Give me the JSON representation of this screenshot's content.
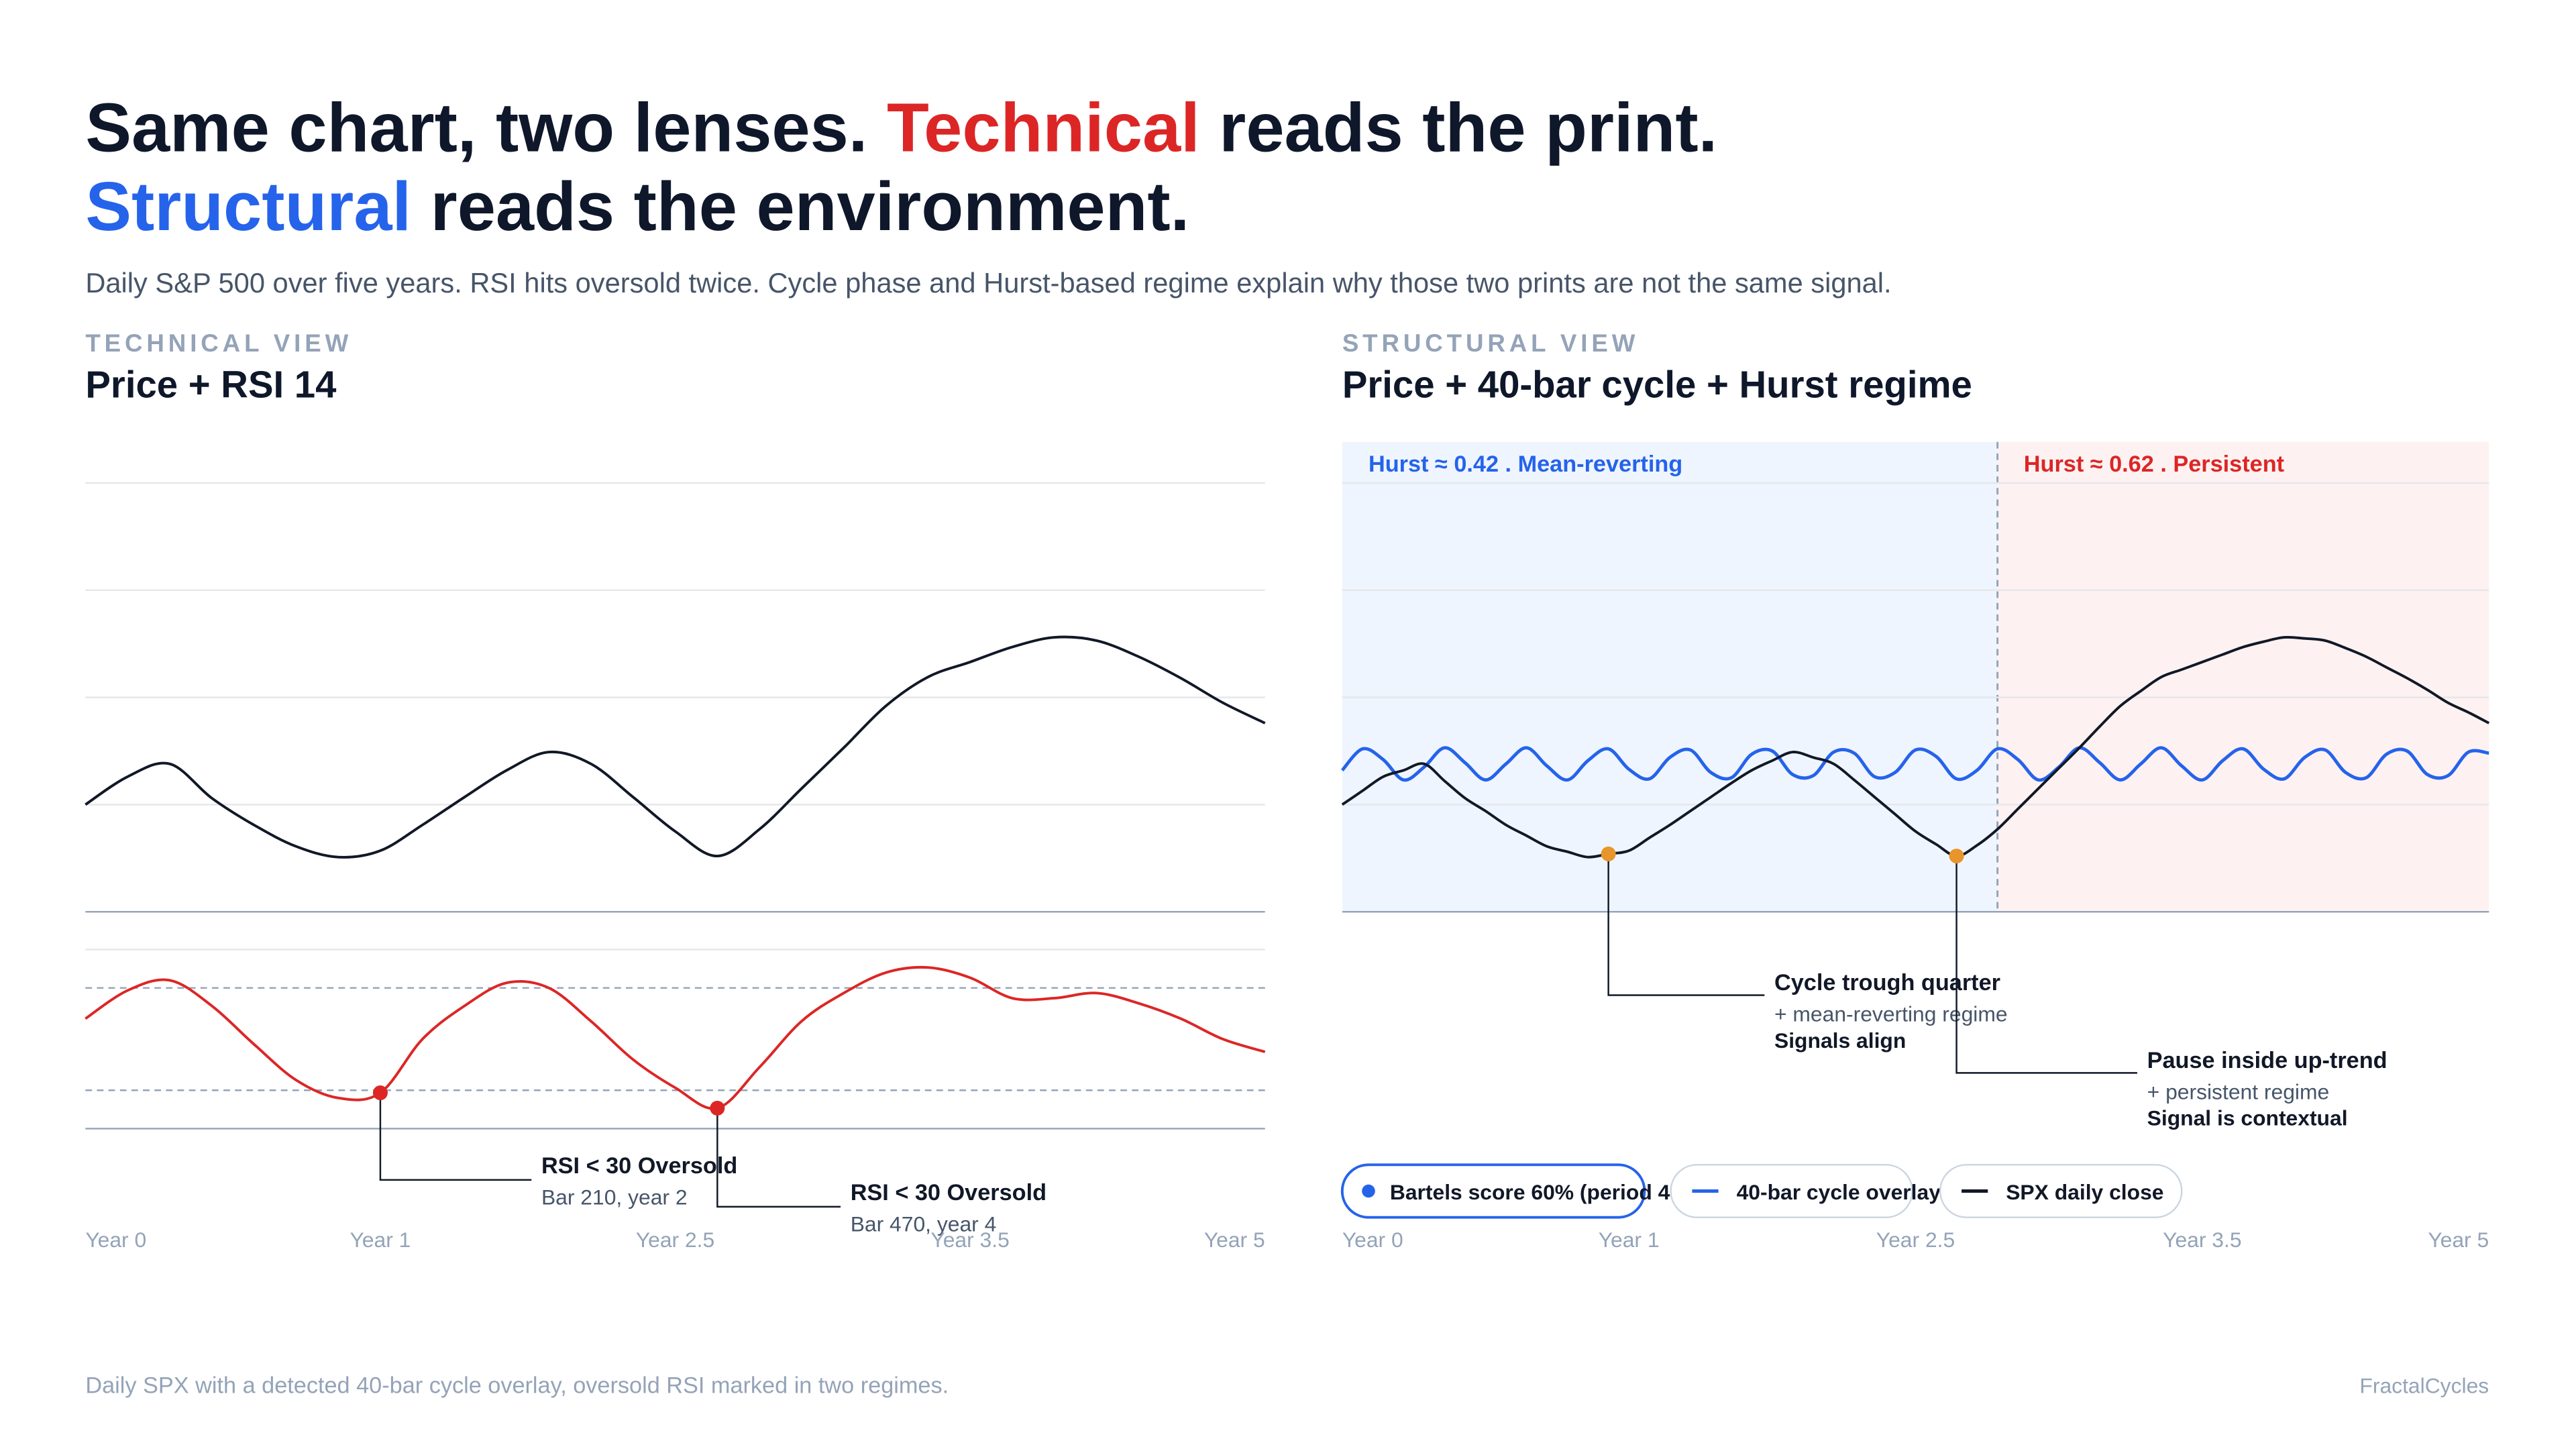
{
  "header": {
    "title": [
      [
        {
          "text": "Same chart, two lenses. ",
          "color": "#0f172a"
        },
        {
          "text": "Technical",
          "color": "#dc2626"
        },
        {
          "text": " reads the print.",
          "color": "#0f172a"
        }
      ],
      [
        {
          "text": "Structural",
          "color": "#2563eb"
        },
        {
          "text": " reads the environment.",
          "color": "#0f172a"
        }
      ]
    ],
    "subtitle": "Daily S&P 500 over five years. RSI hits oversold twice. Cycle phase and Hurst-based regime explain why those two prints are not the same signal."
  },
  "chart_data": [
    {
      "type": "line",
      "section": "TECHNICAL VIEW",
      "title": "Price + RSI 14",
      "categories": [
        "Year 0",
        null,
        null,
        null,
        null,
        null,
        null,
        "Year 1",
        null,
        null,
        null,
        null,
        null,
        null,
        "Year 2.5",
        null,
        null,
        null,
        null,
        null,
        null,
        "Year 3.5",
        null,
        null,
        null,
        null,
        null,
        null,
        "Year 5"
      ],
      "panels": [
        {
          "ylim": [
            0,
            4
          ],
          "yticks": [
            0,
            1,
            2,
            3,
            4
          ],
          "grid": true,
          "series": [
            {
              "color": "#111827",
              "values": [
                1.0,
                1.26,
                1.38,
                1.06,
                0.81,
                0.61,
                0.51,
                0.57,
                0.81,
                1.07,
                1.32,
                1.49,
                1.38,
                1.07,
                0.75,
                0.52,
                0.77,
                1.15,
                1.53,
                1.92,
                2.19,
                2.33,
                2.47,
                2.56,
                2.53,
                2.38,
                2.18,
                1.95,
                1.76
              ]
            }
          ]
        },
        {
          "ylim": [
            15,
            85
          ],
          "levels": [
            30,
            70
          ],
          "series": [
            {
              "color": "#dc2626",
              "marker_color": "#dc2626",
              "values": [
                58,
                69,
                73,
                63,
                48,
                34,
                27,
                29,
                50,
                63,
                72,
                70,
                57,
                42,
                31,
                23,
                39,
                57,
                68,
                76,
                78,
                74,
                66,
                66,
                68,
                64,
                58,
                50,
                45
              ],
              "annotations": [
                {
                  "at": 7,
                  "lines": [
                    "RSI < 30 Oversold",
                    "Bar 210, year 2"
                  ]
                },
                {
                  "at": 15,
                  "lines": [
                    "RSI < 30 Oversold",
                    "Bar 470, year 4"
                  ]
                }
              ]
            }
          ]
        }
      ]
    },
    {
      "type": "line",
      "section": "STRUCTURAL VIEW",
      "title": "Price + 40-bar cycle + Hurst regime",
      "categories": [
        "Year 0",
        null,
        null,
        null,
        null,
        null,
        null,
        null,
        null,
        null,
        null,
        null,
        null,
        null,
        "Year 1",
        null,
        null,
        null,
        null,
        null,
        null,
        null,
        null,
        null,
        null,
        null,
        null,
        null,
        "Year 2.5",
        null,
        null,
        null,
        null,
        null,
        null,
        null,
        null,
        null,
        null,
        null,
        null,
        null,
        "Year 3.5",
        null,
        null,
        null,
        null,
        null,
        null,
        null,
        null,
        null,
        null,
        null,
        null,
        null,
        "Year 5"
      ],
      "regimes": [
        {
          "label": "Hurst ≈ 0.42 . Mean-reverting",
          "color": "#2563eb",
          "fill": "#eff5fe",
          "from": 0,
          "to": 32
        },
        {
          "label": "Hurst ≈ 0.62 . Persistent",
          "color": "#dc2626",
          "fill": "#fdf2f1",
          "from": 32,
          "to": 56
        }
      ],
      "badge": {
        "text": "Bartels score 60% (period 4",
        "color": "#2563eb"
      },
      "panels": [
        {
          "ylim": [
            0,
            4
          ],
          "yticks": [
            0,
            1,
            2,
            3,
            4
          ],
          "grid": true,
          "series": [
            {
              "name": "40-bar cycle overlay",
              "color": "#2563eb",
              "values": [
                1.32,
                1.52,
                1.42,
                1.23,
                1.35,
                1.53,
                1.39,
                1.23,
                1.38,
                1.53,
                1.36,
                1.23,
                1.41,
                1.52,
                1.33,
                1.24,
                1.44,
                1.51,
                1.3,
                1.25,
                1.47,
                1.5,
                1.28,
                1.27,
                1.49,
                1.48,
                1.26,
                1.3,
                1.51,
                1.45,
                1.24,
                1.32,
                1.52,
                1.42,
                1.23,
                1.35,
                1.53,
                1.39,
                1.23,
                1.38,
                1.53,
                1.36,
                1.23,
                1.41,
                1.52,
                1.33,
                1.24,
                1.44,
                1.51,
                1.3,
                1.25,
                1.47,
                1.5,
                1.28,
                1.27,
                1.49,
                1.48
              ]
            },
            {
              "name": "SPX daily close",
              "color": "#111827",
              "marker_color": "#e8952b",
              "values": [
                1.0,
                1.13,
                1.26,
                1.32,
                1.38,
                1.22,
                1.06,
                0.94,
                0.81,
                0.71,
                0.61,
                0.56,
                0.51,
                0.54,
                0.57,
                0.69,
                0.81,
                0.94,
                1.07,
                1.2,
                1.32,
                1.41,
                1.49,
                1.44,
                1.38,
                1.23,
                1.07,
                0.91,
                0.75,
                0.63,
                0.52,
                0.62,
                0.77,
                0.96,
                1.15,
                1.34,
                1.53,
                1.73,
                1.92,
                2.06,
                2.19,
                2.26,
                2.33,
                2.4,
                2.47,
                2.52,
                2.56,
                2.55,
                2.53,
                2.46,
                2.38,
                2.28,
                2.18,
                2.07,
                1.95,
                1.86,
                1.76
              ],
              "annotations": [
                {
                  "at": 13,
                  "lines": [
                    "Cycle trough quarter",
                    "+ mean-reverting regime",
                    "Signals align"
                  ]
                },
                {
                  "at": 30,
                  "lines": [
                    "Pause inside up-trend",
                    "+ persistent regime",
                    "Signal is contextual"
                  ]
                }
              ]
            }
          ]
        }
      ]
    }
  ],
  "footer": {
    "caption": "Daily SPX with a detected 40-bar cycle overlay, oversold RSI marked in two regimes.",
    "brand": "FractalCycles"
  }
}
